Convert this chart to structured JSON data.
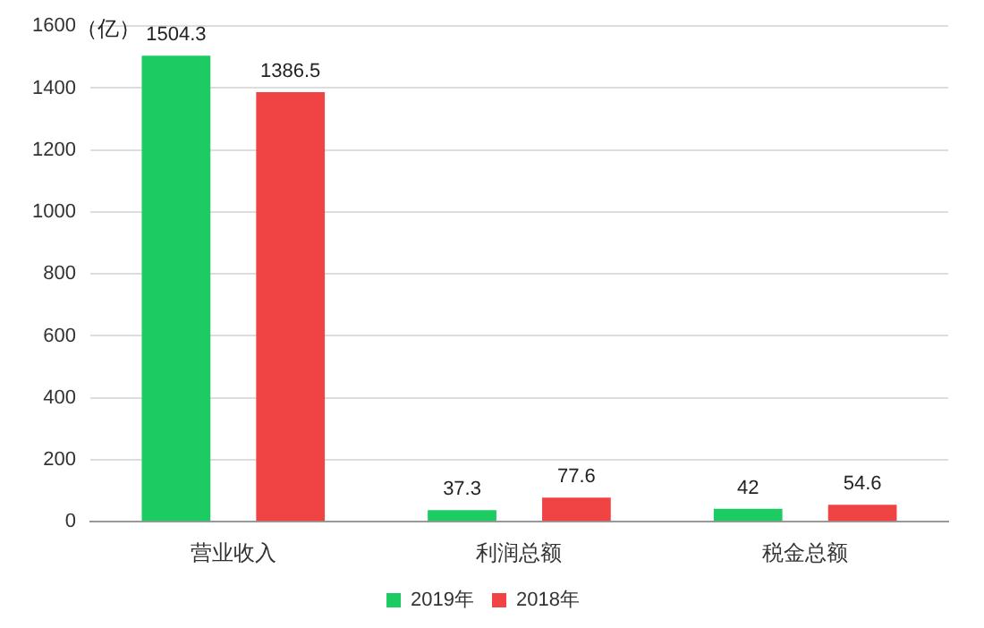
{
  "chart_data": {
    "type": "bar",
    "ylabel": "（亿）",
    "categories": [
      "营业收入",
      "利润总额",
      "税金总额"
    ],
    "series": [
      {
        "name": "2019年",
        "color": "#1ccb62",
        "values": [
          1504.3,
          37.3,
          42
        ]
      },
      {
        "name": "2018年",
        "color": "#f04444",
        "values": [
          1386.5,
          77.6,
          54.6
        ]
      }
    ],
    "ylim": [
      0,
      1600
    ],
    "yticks": [
      0,
      200,
      400,
      600,
      800,
      1000,
      1200,
      1400,
      1600
    ],
    "grid": "y",
    "legend": "bottom",
    "data_labels": true
  }
}
